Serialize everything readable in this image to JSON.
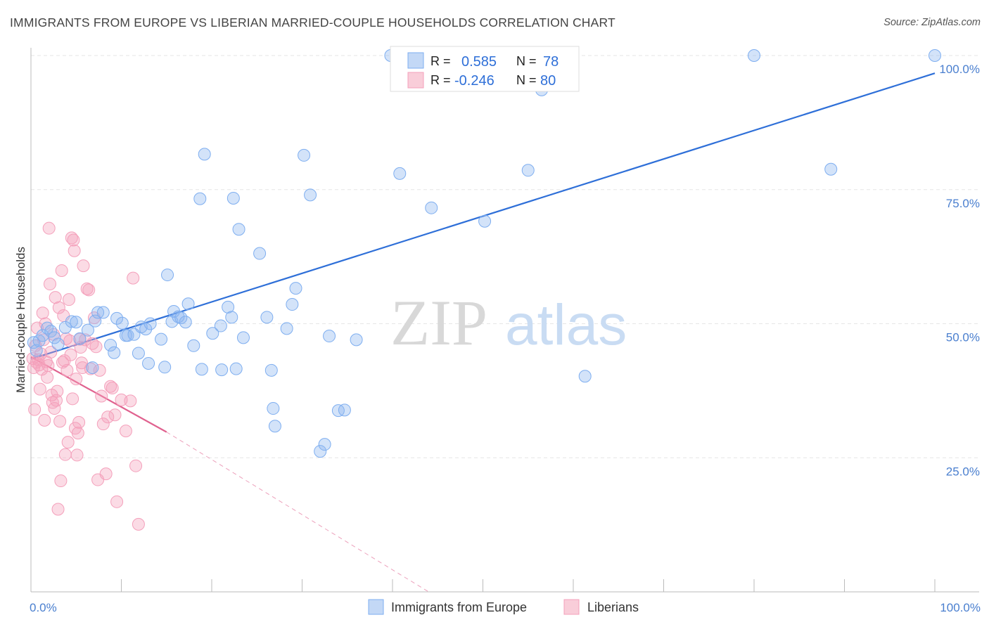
{
  "header": {
    "title": "IMMIGRANTS FROM EUROPE VS LIBERIAN MARRIED-COUPLE HOUSEHOLDS CORRELATION CHART",
    "source": "Source: ZipAtlas.com"
  },
  "watermark": {
    "zip": "ZIP",
    "atlas": "atlas"
  },
  "colors": {
    "blue": "#7eaef0",
    "blue_line": "#2e6fd8",
    "pink": "#f4a0bb",
    "pink_line": "#e0628f"
  },
  "legend": {
    "rows": [
      {
        "r_label": "R =",
        "r_value": "0.585",
        "n_label": "N =",
        "n_value": "78"
      },
      {
        "r_label": "R =",
        "r_value": "-0.246",
        "n_label": "N =",
        "n_value": "80"
      }
    ]
  },
  "bottom_legend": [
    "Immigrants from Europe",
    "Liberians"
  ],
  "chart_data": {
    "type": "scatter",
    "title": "IMMIGRANTS FROM EUROPE VS LIBERIAN MARRIED-COUPLE HOUSEHOLDS CORRELATION CHART",
    "xlabel": "",
    "ylabel": "Married-couple Households",
    "xlim": [
      0,
      100
    ],
    "ylim": [
      0,
      100
    ],
    "x_tick_labels": [
      "0.0%",
      "100.0%"
    ],
    "y_ticks": [
      25,
      50,
      75,
      100
    ],
    "y_tick_labels": [
      "25.0%",
      "50.0%",
      "75.0%",
      "100.0%"
    ],
    "series": [
      {
        "name": "Immigrants from Europe",
        "color": "blue",
        "r": 0.585,
        "n": 78,
        "trend": {
          "x0": 0,
          "y0": 43.4,
          "x1": 100,
          "y1": 96.7
        },
        "points": [
          [
            0.3,
            46.5
          ],
          [
            0.6,
            45.0
          ],
          [
            0.9,
            46.8
          ],
          [
            1.3,
            47.8
          ],
          [
            1.8,
            49.2
          ],
          [
            2.2,
            48.6
          ],
          [
            2.6,
            47.4
          ],
          [
            3.0,
            46.2
          ],
          [
            3.8,
            49.3
          ],
          [
            4.5,
            50.4
          ],
          [
            5.0,
            50.3
          ],
          [
            5.4,
            47.2
          ],
          [
            6.3,
            48.8
          ],
          [
            6.8,
            41.8
          ],
          [
            7.1,
            50.5
          ],
          [
            7.4,
            52.1
          ],
          [
            8.0,
            52.1
          ],
          [
            8.8,
            46.0
          ],
          [
            9.2,
            44.6
          ],
          [
            9.5,
            51.0
          ],
          [
            10.1,
            50.1
          ],
          [
            10.5,
            47.8
          ],
          [
            10.7,
            47.8
          ],
          [
            11.4,
            48.0
          ],
          [
            11.9,
            44.5
          ],
          [
            12.2,
            49.4
          ],
          [
            12.7,
            49.0
          ],
          [
            13.0,
            42.6
          ],
          [
            13.2,
            50.0
          ],
          [
            14.4,
            47.1
          ],
          [
            14.8,
            41.9
          ],
          [
            15.1,
            59.1
          ],
          [
            15.6,
            50.4
          ],
          [
            15.8,
            52.3
          ],
          [
            16.3,
            51.3
          ],
          [
            16.6,
            51.1
          ],
          [
            17.1,
            50.3
          ],
          [
            17.4,
            53.7
          ],
          [
            18.0,
            45.9
          ],
          [
            18.7,
            73.3
          ],
          [
            18.9,
            41.5
          ],
          [
            19.2,
            81.6
          ],
          [
            20.1,
            48.2
          ],
          [
            21.0,
            49.6
          ],
          [
            21.1,
            41.4
          ],
          [
            21.8,
            53.1
          ],
          [
            22.2,
            51.2
          ],
          [
            22.4,
            73.4
          ],
          [
            22.7,
            41.6
          ],
          [
            23.0,
            67.6
          ],
          [
            23.5,
            47.4
          ],
          [
            25.3,
            63.1
          ],
          [
            26.1,
            51.2
          ],
          [
            26.6,
            41.3
          ],
          [
            26.8,
            34.2
          ],
          [
            27.0,
            30.9
          ],
          [
            28.3,
            49.1
          ],
          [
            28.9,
            53.6
          ],
          [
            29.3,
            56.6
          ],
          [
            30.2,
            81.4
          ],
          [
            30.9,
            74.0
          ],
          [
            32.0,
            26.2
          ],
          [
            32.5,
            27.5
          ],
          [
            33.0,
            47.7
          ],
          [
            34.0,
            33.8
          ],
          [
            34.7,
            33.9
          ],
          [
            36.0,
            47.0
          ],
          [
            39.8,
            100.0
          ],
          [
            40.8,
            78.0
          ],
          [
            44.3,
            71.6
          ],
          [
            47.0,
            100.0
          ],
          [
            50.2,
            69.1
          ],
          [
            55.0,
            78.6
          ],
          [
            56.5,
            93.6
          ],
          [
            61.3,
            40.2
          ],
          [
            80.0,
            100.0
          ],
          [
            88.5,
            78.8
          ],
          [
            100.0,
            100.0
          ]
        ]
      },
      {
        "name": "Liberians",
        "color": "pink",
        "r": -0.246,
        "n": 80,
        "trend": {
          "x0": 0,
          "y0": 43.8,
          "x1": 15,
          "y1": 29.8,
          "dash_x1": 44.0,
          "dash_y1": 0
        },
        "points": [
          [
            0.2,
            43.5
          ],
          [
            0.3,
            41.8
          ],
          [
            0.4,
            34.0
          ],
          [
            0.5,
            45.9
          ],
          [
            0.6,
            42.8
          ],
          [
            0.7,
            49.2
          ],
          [
            0.8,
            43.3
          ],
          [
            0.9,
            42.3
          ],
          [
            1.0,
            37.8
          ],
          [
            1.1,
            44.4
          ],
          [
            1.2,
            41.5
          ],
          [
            1.3,
            52.0
          ],
          [
            1.4,
            47.0
          ],
          [
            1.5,
            32.0
          ],
          [
            1.6,
            50.0
          ],
          [
            1.7,
            42.9
          ],
          [
            1.8,
            40.0
          ],
          [
            1.9,
            42.2
          ],
          [
            2.0,
            67.8
          ],
          [
            2.1,
            57.4
          ],
          [
            2.2,
            44.7
          ],
          [
            2.3,
            36.7
          ],
          [
            2.4,
            35.3
          ],
          [
            2.5,
            48.0
          ],
          [
            2.6,
            34.2
          ],
          [
            2.7,
            54.9
          ],
          [
            2.8,
            35.7
          ],
          [
            2.9,
            37.4
          ],
          [
            3.0,
            15.4
          ],
          [
            3.1,
            53.0
          ],
          [
            3.2,
            31.8
          ],
          [
            3.3,
            20.7
          ],
          [
            3.4,
            59.9
          ],
          [
            3.5,
            42.8
          ],
          [
            3.6,
            51.5
          ],
          [
            3.7,
            43.1
          ],
          [
            3.8,
            25.6
          ],
          [
            3.9,
            47.2
          ],
          [
            4.0,
            41.3
          ],
          [
            4.1,
            27.9
          ],
          [
            4.2,
            54.5
          ],
          [
            4.3,
            46.8
          ],
          [
            4.4,
            44.2
          ],
          [
            4.5,
            66.0
          ],
          [
            4.6,
            36.0
          ],
          [
            4.7,
            65.6
          ],
          [
            4.8,
            63.6
          ],
          [
            4.9,
            30.5
          ],
          [
            5.0,
            39.7
          ],
          [
            5.1,
            25.5
          ],
          [
            5.2,
            29.6
          ],
          [
            5.3,
            31.6
          ],
          [
            5.4,
            47.1
          ],
          [
            5.5,
            45.6
          ],
          [
            5.6,
            42.7
          ],
          [
            5.7,
            41.8
          ],
          [
            5.8,
            60.8
          ],
          [
            6.0,
            47.0
          ],
          [
            6.2,
            56.5
          ],
          [
            6.4,
            56.3
          ],
          [
            6.6,
            41.6
          ],
          [
            6.8,
            46.3
          ],
          [
            7.0,
            51.1
          ],
          [
            7.2,
            45.7
          ],
          [
            7.4,
            20.9
          ],
          [
            7.6,
            41.3
          ],
          [
            7.8,
            36.5
          ],
          [
            8.0,
            31.3
          ],
          [
            8.3,
            22.0
          ],
          [
            8.5,
            32.6
          ],
          [
            8.8,
            38.3
          ],
          [
            9.0,
            38.0
          ],
          [
            9.3,
            33.0
          ],
          [
            9.5,
            16.8
          ],
          [
            10.0,
            35.8
          ],
          [
            10.5,
            30.0
          ],
          [
            11.0,
            35.6
          ],
          [
            11.3,
            58.5
          ],
          [
            11.6,
            23.5
          ],
          [
            11.9,
            12.6
          ]
        ]
      }
    ]
  }
}
